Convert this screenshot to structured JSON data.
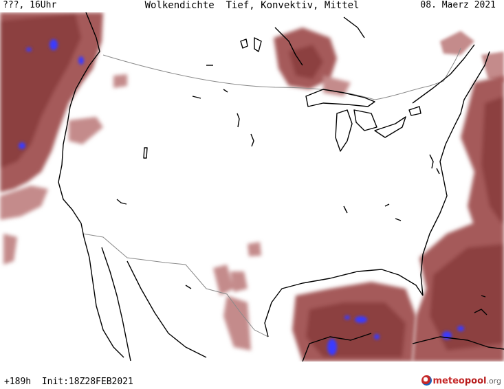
{
  "header": {
    "left": "???, 16Uhr",
    "center": "Wolkendichte  Tief, Konvektiv, Mittel",
    "right": "08. Maerz 2021"
  },
  "footer": {
    "run_info": "+189h  Init:18Z28FEB2021"
  },
  "brand": {
    "part1": "meteo",
    "part2": "pool",
    "part3": ".org"
  },
  "colors": {
    "cloud_dense": "#8c3f3f",
    "cloud_medium": "#a55a5a",
    "cloud_light": "#c48b8b",
    "convective_blue": "#3b3bff",
    "coastline": "#000000",
    "border": "#8a8a8a"
  }
}
